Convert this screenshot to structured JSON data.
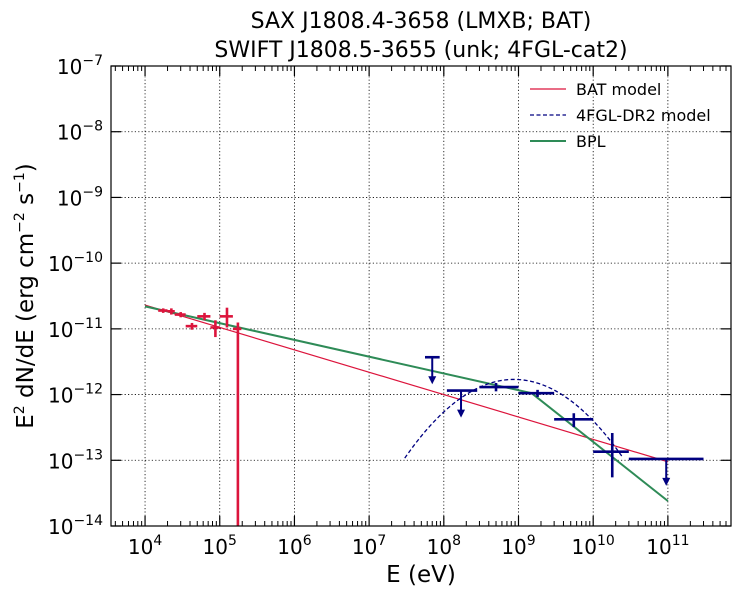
{
  "chart_data": {
    "type": "scatter",
    "title": [
      "SAX J1808.4-3658 (LMXB; BAT)",
      "SWIFT J1808.5-3655 (unk; 4FGL-cat2)"
    ],
    "xlabel": "E (eV)",
    "ylabel_parts": {
      "prefix": "E",
      "sup1": "2",
      "mid": " dN/dE (erg cm",
      "sup2": "−2",
      "mid2": " s",
      "sup3": "−1",
      "suffix": ")"
    },
    "x_scale": "log",
    "y_scale": "log",
    "xlim": [
      3500,
      700000000000
    ],
    "ylim": [
      1e-14,
      1e-07
    ],
    "grid": true,
    "x_ticks": [
      {
        "value": 10000,
        "base": "10",
        "exp": "4"
      },
      {
        "value": 100000,
        "base": "10",
        "exp": "5"
      },
      {
        "value": 1000000,
        "base": "10",
        "exp": "6"
      },
      {
        "value": 10000000,
        "base": "10",
        "exp": "7"
      },
      {
        "value": 100000000,
        "base": "10",
        "exp": "8"
      },
      {
        "value": 1000000000,
        "base": "10",
        "exp": "9"
      },
      {
        "value": 10000000000,
        "base": "10",
        "exp": "10"
      },
      {
        "value": 100000000000,
        "base": "10",
        "exp": "11"
      }
    ],
    "y_ticks": [
      {
        "value": 1e-14,
        "base": "10",
        "exp": "−14"
      },
      {
        "value": 1e-13,
        "base": "10",
        "exp": "−13"
      },
      {
        "value": 1e-12,
        "base": "10",
        "exp": "−12"
      },
      {
        "value": 1e-11,
        "base": "10",
        "exp": "−11"
      },
      {
        "value": 1e-10,
        "base": "10",
        "exp": "−10"
      },
      {
        "value": 1e-09,
        "base": "10",
        "exp": "−9"
      },
      {
        "value": 1e-08,
        "base": "10",
        "exp": "−8"
      },
      {
        "value": 1e-07,
        "base": "10",
        "exp": "−7"
      }
    ],
    "legend": {
      "placement": "top-right",
      "entries": [
        {
          "label": "BAT model",
          "color": "#dc143c",
          "style": "solid"
        },
        {
          "label": "4FGL-DR2 model",
          "color": "#000080",
          "style": "dashed"
        },
        {
          "label": "BPL",
          "color": "#2e8b57",
          "style": "solid"
        }
      ]
    },
    "colors": {
      "bat": "#dc143c",
      "fermi": "#000080",
      "bpl": "#2e8b57"
    },
    "bat_points": [
      {
        "x": 17500,
        "y": 1.9e-11,
        "xlo": 15000,
        "xhi": 20000,
        "ylo": 1.75e-11,
        "yhi": 2.05e-11
      },
      {
        "x": 22500,
        "y": 1.85e-11,
        "xlo": 20000,
        "xhi": 25000,
        "ylo": 1.65e-11,
        "yhi": 2.05e-11
      },
      {
        "x": 30000,
        "y": 1.65e-11,
        "xlo": 25000,
        "xhi": 35000,
        "ylo": 1.5e-11,
        "yhi": 1.8e-11
      },
      {
        "x": 42500,
        "y": 1.1e-11,
        "xlo": 35000,
        "xhi": 50000,
        "ylo": 9.7e-12,
        "yhi": 1.23e-11
      },
      {
        "x": 62500,
        "y": 1.55e-11,
        "xlo": 50000,
        "xhi": 75000,
        "ylo": 1.35e-11,
        "yhi": 1.75e-11
      },
      {
        "x": 87500,
        "y": 1.05e-11,
        "xlo": 75000,
        "xhi": 100000,
        "ylo": 7.5e-12,
        "yhi": 1.35e-11
      },
      {
        "x": 125000,
        "y": 1.55e-11,
        "xlo": 100000,
        "xhi": 150000,
        "ylo": 1.05e-11,
        "yhi": 2.1e-11
      },
      {
        "x": 175000,
        "y": 1e-11,
        "xlo": 150000,
        "xhi": 195000,
        "ylo": 1e-14,
        "yhi": 1.25e-11
      }
    ],
    "fermi_points": [
      {
        "x": 500000000,
        "y": 1.3e-12,
        "xlo": 300000000,
        "xhi": 1000000000,
        "ylo": 1.12e-12,
        "yhi": 1.5e-12
      },
      {
        "x": 1800000000,
        "y": 1.05e-12,
        "xlo": 1000000000,
        "xhi": 3000000000,
        "ylo": 9.2e-13,
        "yhi": 1.18e-12
      },
      {
        "x": 5500000000,
        "y": 4.2e-13,
        "xlo": 3000000000,
        "xhi": 10000000000,
        "ylo": 3.2e-13,
        "yhi": 5.2e-13
      },
      {
        "x": 18000000000,
        "y": 1.35e-13,
        "xlo": 10000000000,
        "xhi": 30000000000,
        "ylo": 5.5e-14,
        "yhi": 2.6e-13
      }
    ],
    "fermi_upper_limits": [
      {
        "x": 70000000,
        "y": 3.7e-12,
        "xlo": 56000000,
        "xhi": 88000000
      },
      {
        "x": 170000000,
        "y": 1.15e-12,
        "xlo": 110000000,
        "xhi": 280000000
      },
      {
        "x": 95000000000,
        "y": 1.05e-13,
        "xlo": 30000000000,
        "xhi": 300000000000
      }
    ],
    "bat_model": {
      "x": [
        10000,
        100000000000
      ],
      "y": [
        2.3e-11,
        9.5e-14
      ]
    },
    "bpl_model": {
      "x": [
        10000,
        1500000000,
        100000000000
      ],
      "y": [
        2.2e-11,
        1.05e-12,
        2.4e-14
      ]
    },
    "fermi_model": {
      "peak_x": 870000000,
      "peak_y": 1.7e-12,
      "curvature": 0.56,
      "x_range": [
        30000000,
        25000000000
      ]
    }
  }
}
